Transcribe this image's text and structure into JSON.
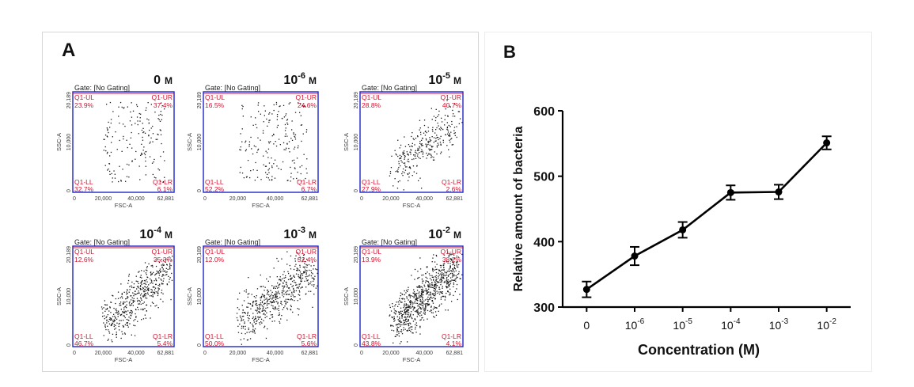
{
  "panel_a": {
    "letter": "A",
    "gate_label": "Gate: [No Gating]",
    "x_axis_label": "FSC-A",
    "y_axis_label": "SSC-A",
    "x_ticks": [
      "0",
      "20,000",
      "40,000",
      "62,881"
    ],
    "y_ticks": [
      "0",
      "10,000",
      "20,189"
    ],
    "quadrant_names": {
      "ul": "Q1-UL",
      "ur": "Q1-UR",
      "ll": "Q1-LL",
      "lr": "Q1-LR"
    },
    "unit": "M",
    "plots": [
      {
        "base": "0",
        "exp": "",
        "ul": "23.9%",
        "ur": "37.4%",
        "ll": "32.7%",
        "lr": "6.1%",
        "n": 170,
        "density": "sparse"
      },
      {
        "base": "10",
        "exp": "-6",
        "ul": "16.5%",
        "ur": "24.6%",
        "ll": "52.2%",
        "lr": "6.7%",
        "n": 200,
        "density": "sparse"
      },
      {
        "base": "10",
        "exp": "-5",
        "ul": "28.8%",
        "ur": "40.7%",
        "ll": "27.9%",
        "lr": "2.6%",
        "n": 300,
        "density": "medium"
      },
      {
        "base": "10",
        "exp": "-4",
        "ul": "12.6%",
        "ur": "35.3%",
        "ll": "46.7%",
        "lr": "5.4%",
        "n": 500,
        "density": "dense"
      },
      {
        "base": "10",
        "exp": "-3",
        "ul": "12.0%",
        "ur": "32.4%",
        "ll": "50.0%",
        "lr": "5.6%",
        "n": 550,
        "density": "dense"
      },
      {
        "base": "10",
        "exp": "-2",
        "ul": "13.9%",
        "ur": "38.2%",
        "ll": "43.8%",
        "lr": "4.1%",
        "n": 800,
        "density": "very-dense"
      }
    ]
  },
  "chart_data": {
    "type": "line",
    "panel_letter": "B",
    "title": "",
    "xlabel": "Concentration (M)",
    "ylabel": "Relative amount of bacteria",
    "categories": [
      {
        "base": "0",
        "exp": ""
      },
      {
        "base": "10",
        "exp": "-6"
      },
      {
        "base": "10",
        "exp": "-5"
      },
      {
        "base": "10",
        "exp": "-4"
      },
      {
        "base": "10",
        "exp": "-3"
      },
      {
        "base": "10",
        "exp": "-2"
      }
    ],
    "x_positions": [
      0.5,
      1.5,
      2.5,
      3.5,
      4.5,
      5.5
    ],
    "values": [
      327,
      378,
      418,
      475,
      476,
      551
    ],
    "error": [
      12,
      14,
      12,
      11,
      11,
      10
    ],
    "ylim": [
      300,
      600
    ],
    "yticks": [
      300,
      400,
      500,
      600
    ],
    "xlim": [
      0,
      6
    ],
    "grid": false,
    "colors": {
      "line": "#000000",
      "marker": "#000000"
    }
  },
  "colors": {
    "plot_border": "#1f24c8",
    "quadrant_text": "#d6132f",
    "quadrant_line": "#d6132f",
    "dot": "#1a1a1a",
    "axis_text": "#3a3a3a"
  }
}
